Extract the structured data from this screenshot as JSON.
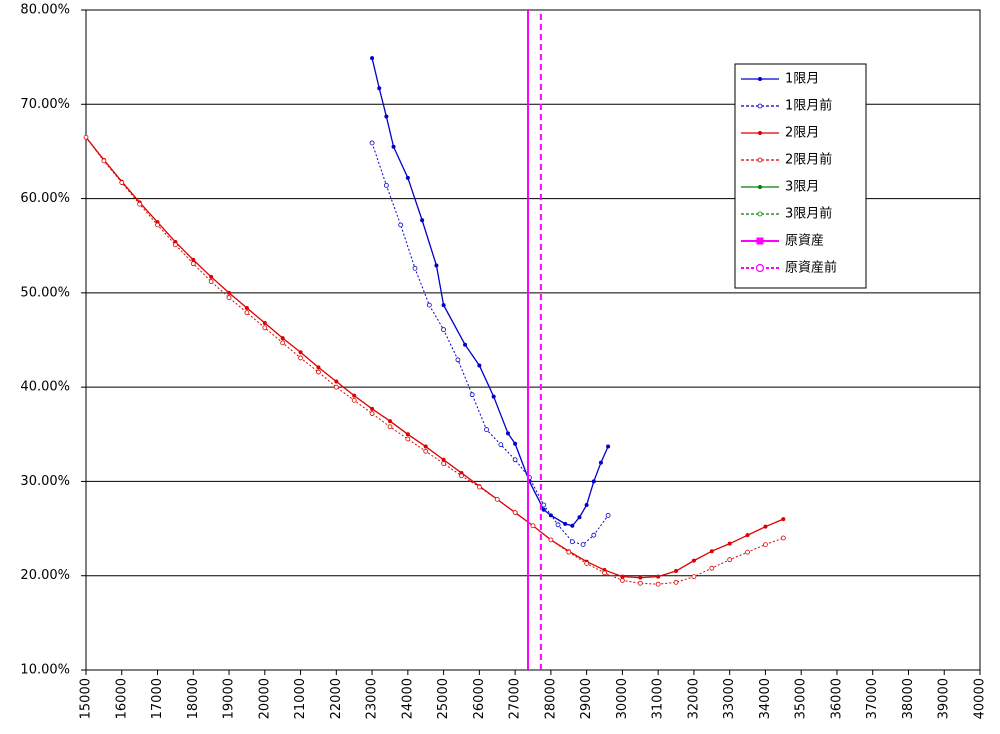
{
  "chart_data": {
    "type": "line",
    "xlim": [
      15000,
      40000
    ],
    "xticks": [
      15000,
      16000,
      17000,
      18000,
      19000,
      20000,
      21000,
      22000,
      23000,
      24000,
      25000,
      26000,
      27000,
      28000,
      29000,
      30000,
      31000,
      32000,
      33000,
      34000,
      35000,
      36000,
      37000,
      38000,
      39000,
      40000
    ],
    "ylim": [
      10,
      80
    ],
    "yticks": [
      {
        "value": 10,
        "label": "10.00%"
      },
      {
        "value": 20,
        "label": "20.00%"
      },
      {
        "value": 30,
        "label": "30.00%"
      },
      {
        "value": 40,
        "label": "40.00%"
      },
      {
        "value": 50,
        "label": "50.00%"
      },
      {
        "value": 60,
        "label": "60.00%"
      },
      {
        "value": 70,
        "label": "70.00%"
      },
      {
        "value": 80,
        "label": "80.00%"
      }
    ],
    "grid": true,
    "legend": "upper-right",
    "series": [
      {
        "name": "1限月",
        "color": "#0000cc",
        "dash": false,
        "marker": "dot",
        "x": [
          23000,
          23200,
          23400,
          23600,
          24000,
          24400,
          24800,
          25000,
          25600,
          26000,
          26400,
          26800,
          27000,
          27400,
          27800,
          28000,
          28400,
          28600,
          28800,
          29000,
          29200,
          29400,
          29600
        ],
        "values": [
          74.9,
          71.7,
          68.7,
          65.5,
          62.2,
          57.7,
          52.9,
          48.7,
          44.5,
          42.3,
          39.0,
          35.1,
          34.0,
          30.0,
          27.0,
          26.4,
          25.5,
          25.3,
          26.2,
          27.5,
          30.0,
          32.0,
          33.7
        ]
      },
      {
        "name": "1限月前",
        "color": "#0000cc",
        "dash": true,
        "marker": "open",
        "x": [
          23000,
          23400,
          23800,
          24200,
          24600,
          25000,
          25400,
          25800,
          26200,
          26600,
          27000,
          27400,
          27800,
          28200,
          28600,
          28900,
          29200,
          29600
        ],
        "values": [
          65.9,
          61.4,
          57.2,
          52.6,
          48.7,
          46.1,
          42.9,
          39.2,
          35.5,
          33.9,
          32.3,
          30.4,
          27.5,
          25.4,
          23.6,
          23.3,
          24.3,
          26.4
        ]
      },
      {
        "name": "2限月",
        "color": "#dd0000",
        "dash": false,
        "marker": "dot",
        "x": [
          15000,
          15500,
          16000,
          16500,
          17000,
          17500,
          18000,
          18500,
          19000,
          19500,
          20000,
          20500,
          21000,
          21500,
          22000,
          22500,
          23000,
          23500,
          24000,
          24500,
          25000,
          25500,
          26000,
          26500,
          27000,
          27500,
          28000,
          28500,
          29000,
          29500,
          30000,
          30500,
          31000,
          31500,
          32000,
          32500,
          33000,
          33500,
          34000,
          34500
        ],
        "values": [
          66.5,
          64.1,
          61.8,
          59.6,
          57.5,
          55.4,
          53.5,
          51.7,
          50.0,
          48.4,
          46.8,
          45.2,
          43.7,
          42.1,
          40.6,
          39.1,
          37.7,
          36.4,
          35.0,
          33.7,
          32.3,
          30.9,
          29.5,
          28.1,
          26.7,
          25.3,
          23.8,
          22.6,
          21.5,
          20.6,
          19.9,
          19.8,
          19.9,
          20.5,
          21.6,
          22.6,
          23.4,
          24.3,
          25.2,
          26.0
        ]
      },
      {
        "name": "2限月前",
        "color": "#dd0000",
        "dash": true,
        "marker": "open",
        "x": [
          15000,
          15500,
          16000,
          16500,
          17000,
          17500,
          18000,
          18500,
          19000,
          19500,
          20000,
          20500,
          21000,
          21500,
          22000,
          22500,
          23000,
          23500,
          24000,
          24500,
          25000,
          25500,
          26000,
          26500,
          27000,
          27500,
          28000,
          28500,
          29000,
          29500,
          30000,
          30500,
          31000,
          31500,
          32000,
          32500,
          33000,
          33500,
          34000,
          34500
        ],
        "values": [
          66.5,
          64.0,
          61.7,
          59.4,
          57.2,
          55.1,
          53.1,
          51.2,
          49.5,
          47.9,
          46.3,
          44.7,
          43.1,
          41.6,
          40.0,
          38.6,
          37.2,
          35.8,
          34.5,
          33.2,
          31.9,
          30.6,
          29.4,
          28.1,
          26.7,
          25.3,
          23.8,
          22.5,
          21.3,
          20.3,
          19.5,
          19.2,
          19.1,
          19.3,
          19.9,
          20.8,
          21.7,
          22.5,
          23.3,
          24.0
        ]
      },
      {
        "name": "3限月",
        "color": "#008000",
        "dash": false,
        "marker": "dot",
        "x": [],
        "values": []
      },
      {
        "name": "3限月前",
        "color": "#008000",
        "dash": true,
        "marker": "open",
        "x": [],
        "values": []
      },
      {
        "name": "原資産",
        "color": "#ff00ff",
        "dash": false,
        "marker": "square",
        "x": [
          27360,
          27360
        ],
        "values": [
          10,
          80
        ]
      },
      {
        "name": "原資産前",
        "color": "#ff00ff",
        "dash": true,
        "marker": "bigopen",
        "x": [
          27720,
          27720
        ],
        "values": [
          10,
          80
        ]
      }
    ]
  }
}
